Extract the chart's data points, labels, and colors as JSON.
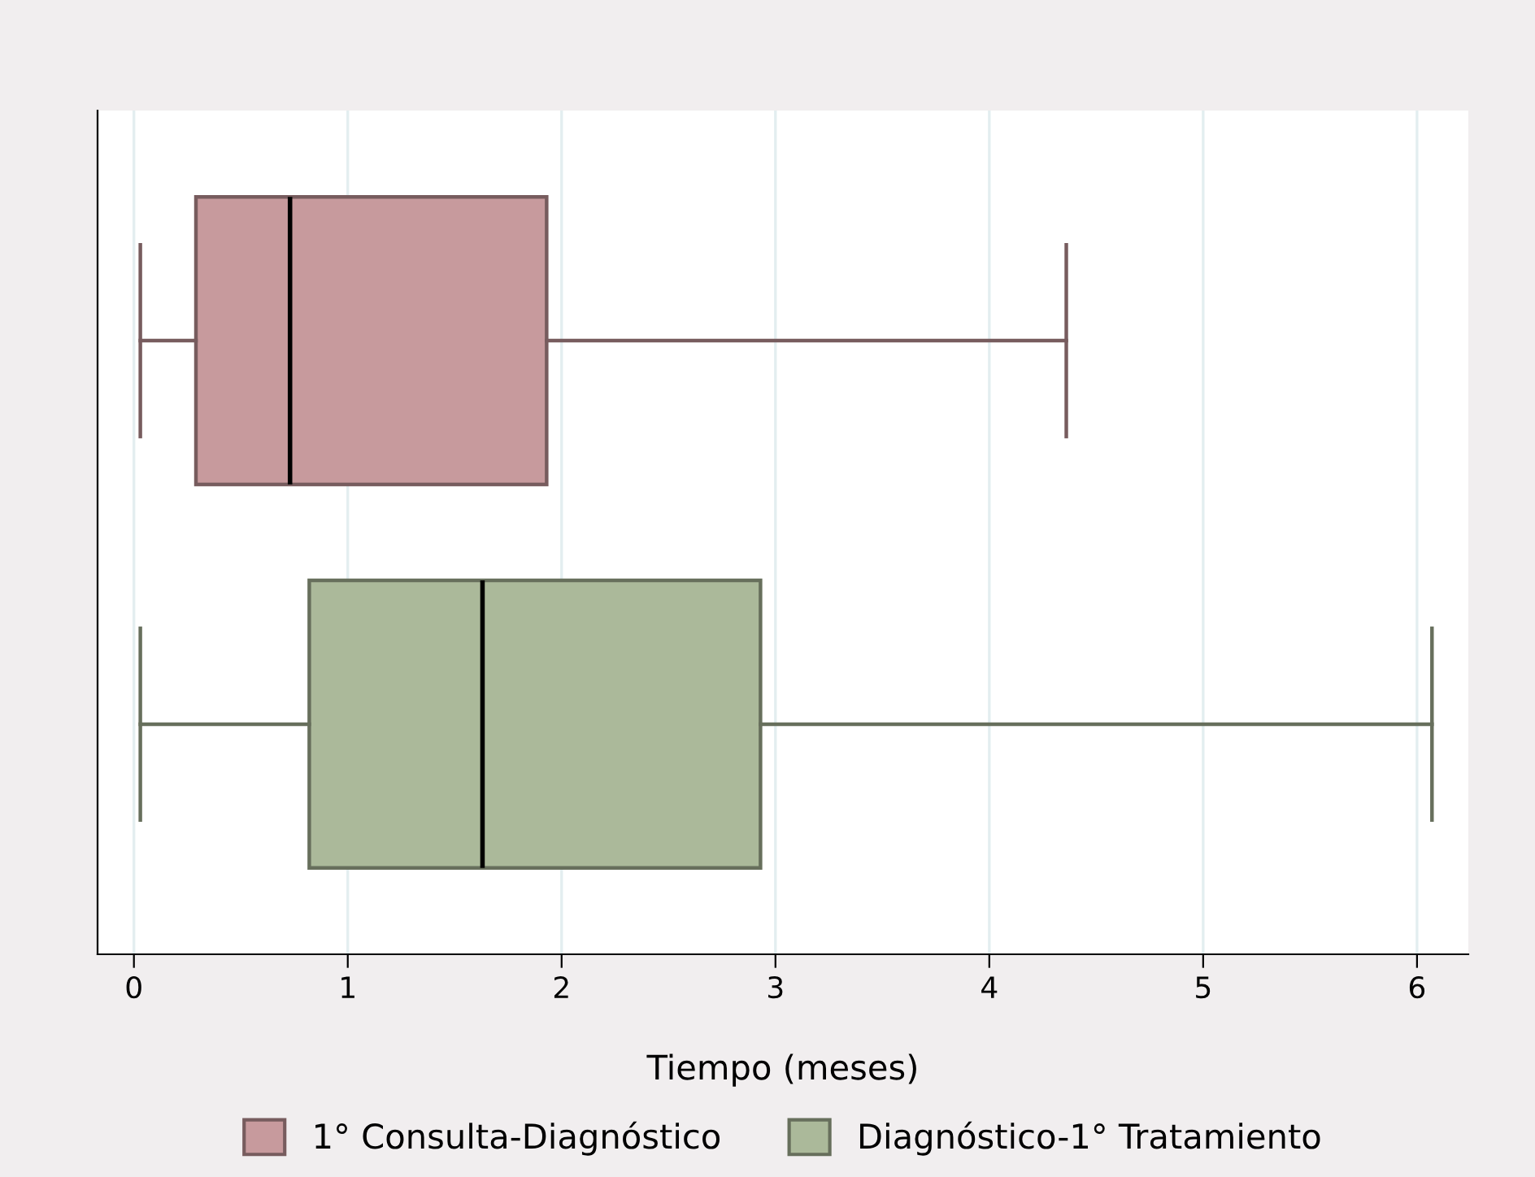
{
  "chart_data": {
    "type": "box",
    "orientation": "horizontal",
    "xlabel": "Tiempo (meses)",
    "categories": [
      null,
      null
    ],
    "series": [
      {
        "name": "1° Consulta-Diagnóstico",
        "color": "#c79a9d",
        "boxes": [
          {
            "low": 0.03,
            "q1": 0.29,
            "median": 0.73,
            "q3": 1.93,
            "high": 4.36
          },
          null
        ]
      },
      {
        "name": "Diagnóstico-1° Tratamiento",
        "color": "#abb99a",
        "boxes": [
          null,
          {
            "low": 0.03,
            "q1": 0.82,
            "median": 1.63,
            "q3": 2.93,
            "high": 6.07
          }
        ]
      }
    ],
    "xlim": [
      -0.17,
      6.24
    ],
    "xticks": [
      0,
      1,
      2,
      3,
      4,
      5,
      6
    ],
    "grid": "x",
    "legend": "bottom",
    "tick_labels": "x"
  }
}
